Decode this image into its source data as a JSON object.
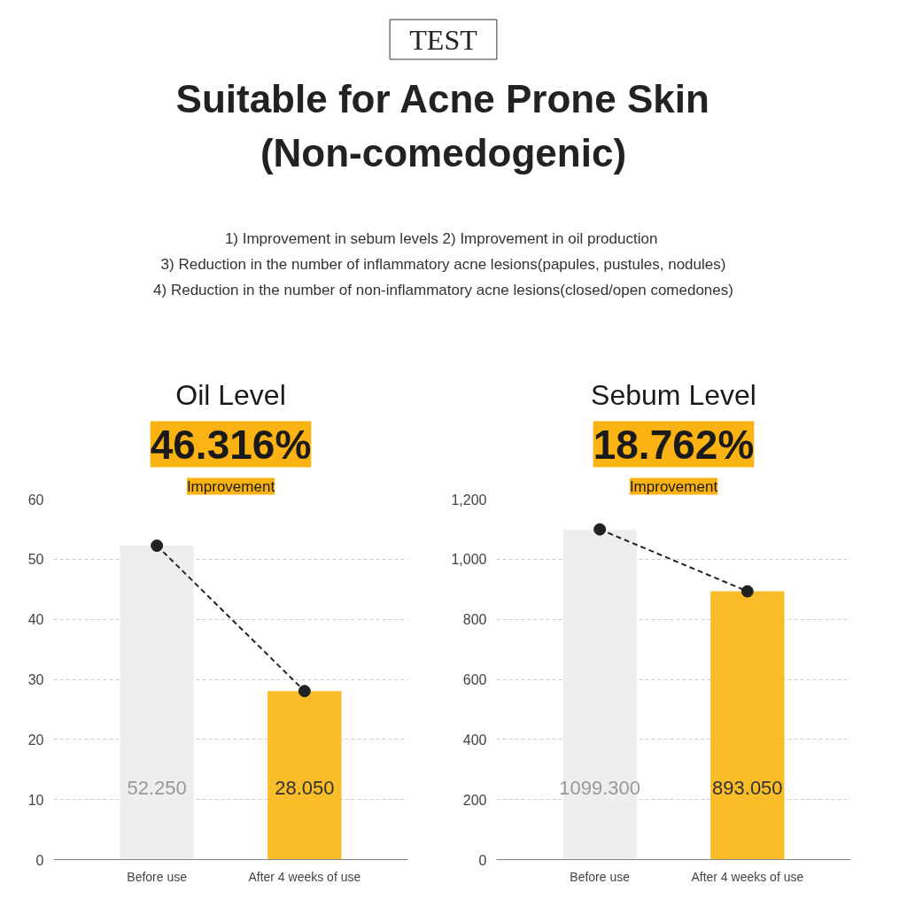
{
  "chart_data": [
    {
      "type": "other",
      "title": "Suitable for Acne Prone Skin\n(Non-comedogenic)",
      "annotations": [
        "TEST",
        "1) Improvement in sebum levels  2) Improvement in oil production",
        "3) Reduction in the number of inflammatory acne lesions(papules, pustules, nodules)",
        "4) Reduction in the number of non-inflammatory acne lesions(closed/open comedones)"
      ]
    },
    {
      "type": "bar",
      "title": "Oil Level",
      "annotations": [
        "46.316%",
        "Improvement"
      ],
      "categories": [
        "Before use",
        "After 4 weeks of use"
      ],
      "series": [
        {
          "type": "bar",
          "colors": [
            "#f0eeec",
            "#f9bd2a"
          ],
          "values": [
            52.25,
            28.05
          ],
          "value_labels": [
            "52.250",
            "28.050"
          ]
        },
        {
          "type": "line",
          "color": "#222222",
          "values": [
            52.25,
            28.05
          ]
        }
      ],
      "marker": "circle",
      "line_style": "dashed",
      "ylim": [
        0,
        60
      ],
      "yticks": [
        0,
        10,
        20,
        30,
        40,
        50,
        60
      ],
      "grid": "y"
    },
    {
      "type": "bar",
      "title": "Sebum Level",
      "annotations": [
        "18.762%",
        "Improvement"
      ],
      "categories": [
        "Before use",
        "After 4 weeks of use"
      ],
      "series": [
        {
          "type": "bar",
          "colors": [
            "#f0eeec",
            "#f9bd2a"
          ],
          "values": [
            1099.3,
            893.05
          ],
          "value_labels": [
            "1099.300",
            "893.050"
          ]
        },
        {
          "type": "line",
          "color": "#222222",
          "values": [
            1099.3,
            893.05
          ]
        }
      ],
      "marker": "circle",
      "line_style": "dashed",
      "ylim": [
        0,
        1200
      ],
      "yticks": [
        0,
        200,
        400,
        600,
        800,
        {
          "value": 1000,
          "label": "1,000"
        },
        {
          "value": 1200,
          "label": "1,200"
        }
      ],
      "grid": "y"
    }
  ]
}
